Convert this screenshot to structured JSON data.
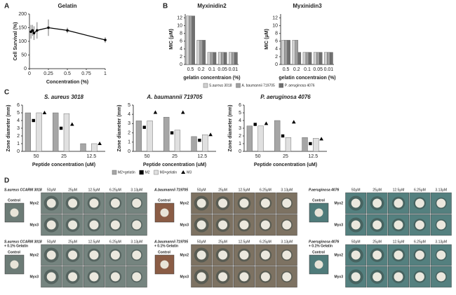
{
  "panel_labels": [
    "A",
    "B",
    "C",
    "D"
  ],
  "chart_data": [
    {
      "type": "line",
      "title": "Gelatin",
      "xlabel": "Concentration (%)",
      "ylabel": "Cell Survival (%)",
      "x": [
        0.02,
        0.04,
        0.06,
        0.1,
        0.25,
        0.5,
        1
      ],
      "values": [
        135,
        140,
        130,
        140,
        150,
        140,
        105
      ],
      "errors": [
        25,
        20,
        25,
        30,
        30,
        10,
        10
      ],
      "color": "#000000",
      "xlim": [
        0,
        1
      ],
      "ylim": [
        0,
        200
      ],
      "xticks": [
        0,
        0.25,
        0.5,
        0.75,
        1
      ],
      "yticks": [
        0,
        50,
        100,
        150,
        200
      ]
    },
    {
      "type": "bar",
      "title": "Myxinidin2",
      "xlabel": "gelatin concentraion (%)",
      "ylabel": "MIC (μM)",
      "legend": "bottom",
      "categories": [
        "0.5",
        "0.2",
        "0.1",
        "0.05",
        "0.01"
      ],
      "series": [
        {
          "name": "S.aureus 3018",
          "color": "#d0d0d0",
          "values": [
            12.5,
            6.25,
            3.13,
            3.13,
            3.13
          ]
        },
        {
          "name": "A. baumannii 719705",
          "color": "#a0a0a0",
          "values": [
            12.5,
            6.25,
            3.13,
            3.13,
            3.13
          ]
        },
        {
          "name": "P. aeruginosa 4076",
          "color": "#707070",
          "values": [
            12.5,
            6.25,
            3.13,
            3.13,
            3.13
          ]
        }
      ],
      "ylim": [
        0,
        13
      ],
      "yticks": [
        0,
        2,
        4,
        6,
        8,
        10,
        12
      ]
    },
    {
      "type": "bar",
      "title": "Myxinidin3",
      "xlabel": "gelatin concentraion (%)",
      "ylabel": "MIC (μM)",
      "categories": [
        "0.5",
        "0.2",
        "0.1",
        "0.05",
        "0.01"
      ],
      "series": [
        {
          "color": "#d0d0d0",
          "values": [
            6.25,
            6.25,
            3.13,
            3.13,
            3.13
          ]
        },
        {
          "color": "#a0a0a0",
          "values": [
            6.25,
            6.25,
            3.13,
            3.13,
            3.13
          ]
        },
        {
          "color": "#707070",
          "values": [
            6.25,
            3.13,
            3.13,
            3.13,
            3.13
          ]
        }
      ],
      "ylim": [
        0,
        13
      ],
      "yticks": [
        0,
        2,
        4,
        6,
        8,
        10,
        12
      ]
    },
    {
      "type": "bar",
      "title": "S. aureus 3018",
      "xlabel": "Peptide concentration (uM)",
      "ylabel": "Zone diameter (mm)",
      "categories": [
        "50",
        "25",
        "12.5"
      ],
      "series": [
        {
          "color": "#a6a6a6",
          "values": [
            5,
            5,
            1
          ]
        },
        {
          "color": "#000000",
          "marker": "square",
          "values": [
            4,
            3,
            null
          ]
        },
        {
          "color": "#e0e0e0",
          "values": [
            5,
            4.9,
            1
          ]
        },
        {
          "color": "#000000",
          "marker": "triangle",
          "values": [
            5,
            3.5,
            1
          ]
        }
      ],
      "ylim": [
        0,
        6
      ],
      "yticks": [
        0,
        1,
        2,
        3,
        4,
        5,
        6
      ]
    },
    {
      "type": "bar",
      "title": "A. baumannii 719705",
      "xlabel": "Peptide concentration (uM)",
      "ylabel": "Zone diameter (mm)",
      "legend": "bottom",
      "categories": [
        "50",
        "25",
        "12.5"
      ],
      "series": [
        {
          "name": "M2+gelatin",
          "color": "#a6a6a6",
          "values": [
            3.3,
            3.7,
            1.6
          ]
        },
        {
          "name": "M2",
          "color": "#000000",
          "marker": "square",
          "values": [
            2.6,
            2,
            1.2
          ]
        },
        {
          "name": "M3+gelatin",
          "color": "#e0e0e0",
          "values": [
            3.3,
            2.3,
            1.8
          ]
        },
        {
          "name": "M3",
          "color": "#000000",
          "marker": "triangle",
          "values": [
            4.2,
            4.2,
            1.8
          ]
        }
      ],
      "ylim": [
        0,
        5
      ],
      "yticks": [
        0,
        1,
        2,
        3,
        4,
        5
      ]
    },
    {
      "type": "bar",
      "title": "P. aeruginosa 4076",
      "xlabel": "Peptide concentration (uM)",
      "ylabel": "Zone diameter (mm)",
      "categories": [
        "50",
        "25",
        "12.5"
      ],
      "series": [
        {
          "color": "#a6a6a6",
          "values": [
            3.3,
            4,
            1.8
          ]
        },
        {
          "color": "#000000",
          "marker": "square",
          "values": [
            3.5,
            2,
            1
          ]
        },
        {
          "color": "#e0e0e0",
          "values": [
            3.3,
            1.8,
            1.7
          ]
        },
        {
          "color": "#000000",
          "marker": "triangle",
          "values": [
            3.6,
            3.8,
            1.6
          ]
        }
      ],
      "ylim": [
        0,
        6
      ],
      "yticks": [
        0,
        1,
        2,
        3,
        4,
        5,
        6
      ]
    }
  ],
  "plates": {
    "control": "Control",
    "rows": [
      "Myx2",
      "Myx3"
    ],
    "concentrations": [
      "50μM",
      "25μM",
      "12.5μM",
      "6.25μM",
      "3.13μM"
    ],
    "panels": [
      {
        "title": "S.aureus CCARM 3018"
      },
      {
        "title": "A.baumannii 719705"
      },
      {
        "title": "P.aeruginosa 4076"
      },
      {
        "title": "S.aureus CCARM 3018",
        "note": "+ 0.1% Gelatin"
      },
      {
        "title": "A.baumannii 719705",
        "note": "+ 0.1% Gelatin"
      },
      {
        "title": "P.aeruginosa 4076",
        "note": "+ 0.1% Gelatin"
      }
    ]
  }
}
